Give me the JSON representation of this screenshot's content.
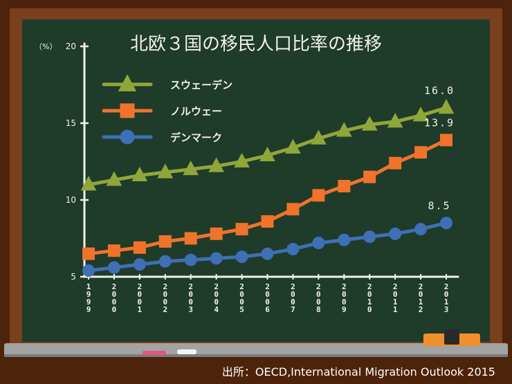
{
  "source_note": "出所：OECD,International Migration Outlook 2015",
  "colors": {
    "frame": "#7a3f1c",
    "frame_dark": "#4e230b",
    "board": "#1f3b2a",
    "chalk": "#f2f2ea",
    "tray": "#a3a3a3",
    "eraser_body": "#f0902a",
    "eraser_top": "#2a2a2a"
  },
  "chart_data": {
    "type": "line",
    "title": "北欧３国の移民人口比率の推移",
    "ylabel": "（%）",
    "xlabel": "",
    "categories": [
      "1999",
      "2000",
      "2001",
      "2002",
      "2003",
      "2004",
      "2005",
      "2006",
      "2007",
      "2008",
      "2009",
      "2010",
      "2011",
      "2012",
      "2013"
    ],
    "yticks": [
      5,
      10,
      15,
      20
    ],
    "ylim": [
      5,
      20
    ],
    "grid": false,
    "legend_position": "top-left",
    "series": [
      {
        "name": "スウェーデン",
        "marker": "triangle",
        "color": "#8fa73a",
        "values": [
          11.0,
          11.3,
          11.6,
          11.8,
          12.0,
          12.2,
          12.5,
          12.9,
          13.4,
          14.0,
          14.5,
          14.9,
          15.1,
          15.5,
          16.0
        ],
        "end_label": "16.0"
      },
      {
        "name": "ノルウェー",
        "marker": "square",
        "color": "#f0732c",
        "values": [
          6.5,
          6.7,
          6.9,
          7.3,
          7.5,
          7.8,
          8.1,
          8.6,
          9.4,
          10.3,
          10.9,
          11.5,
          12.4,
          13.1,
          13.9
        ],
        "end_label": "13.9"
      },
      {
        "name": "デンマーク",
        "marker": "circle",
        "color": "#3f6fb5",
        "values": [
          5.4,
          5.6,
          5.8,
          6.0,
          6.1,
          6.2,
          6.3,
          6.5,
          6.8,
          7.2,
          7.4,
          7.6,
          7.8,
          8.1,
          8.5
        ],
        "end_label": "8.5"
      }
    ]
  }
}
